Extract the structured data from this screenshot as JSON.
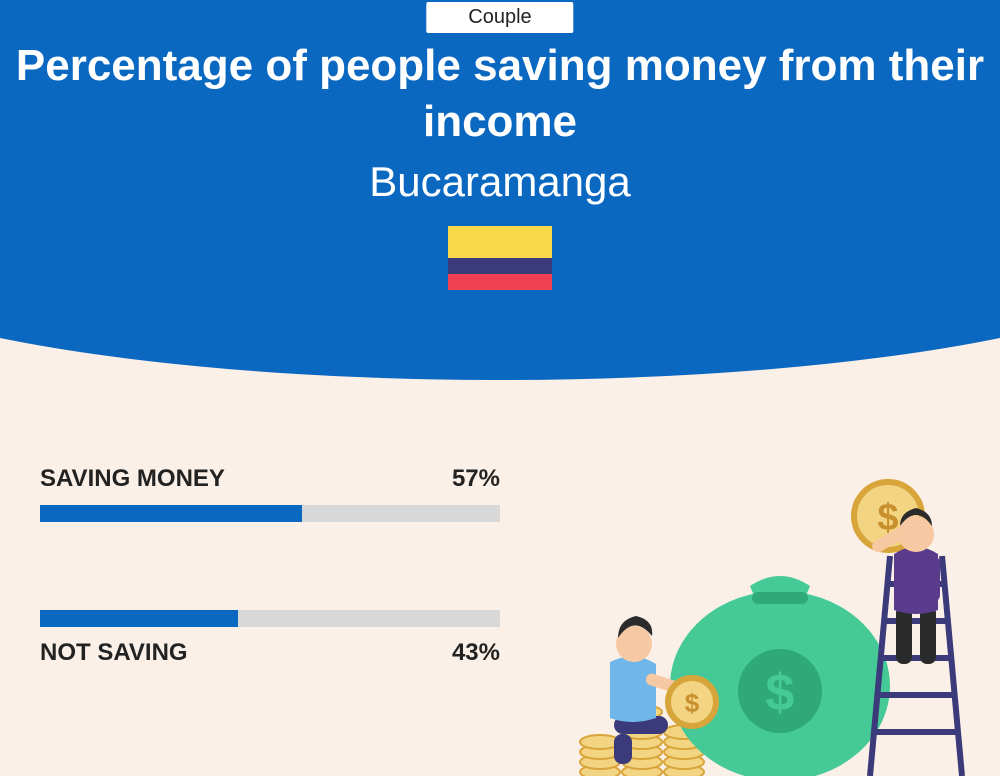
{
  "badge": "Couple",
  "title": "Percentage of people saving money from their income",
  "subtitle": "Bucaramanga",
  "flag_colors": [
    "#f9d949",
    "#3b3a7a",
    "#ef4153"
  ],
  "header_bg": "#0b68c1",
  "page_bg": "#fbf0e8",
  "track_color": "#d8d8d8",
  "fill_color": "#0b68c1",
  "bars": [
    {
      "label": "SAVING MONEY",
      "value": 57,
      "value_label": "57%",
      "label_below": false
    },
    {
      "label": "NOT SAVING",
      "value": 43,
      "value_label": "43%",
      "label_below": true
    }
  ],
  "illus": {
    "bag_color": "#45c997",
    "bag_dark": "#2fa87a",
    "coin_fill": "#f3d483",
    "coin_stroke": "#d8a53a",
    "coin_text": "#c88f2d",
    "person1_pants": "#3b3a7a",
    "person1_shirt": "#6fb7e8",
    "person1_skin": "#f7c9a3",
    "person1_hair": "#2b2b2b",
    "person2_pants": "#2b2b2b",
    "person2_shirt": "#5b3b8c",
    "person2_skin": "#f7c9a3",
    "person2_hair": "#2b2b2b",
    "ladder": "#3b3a7a"
  }
}
